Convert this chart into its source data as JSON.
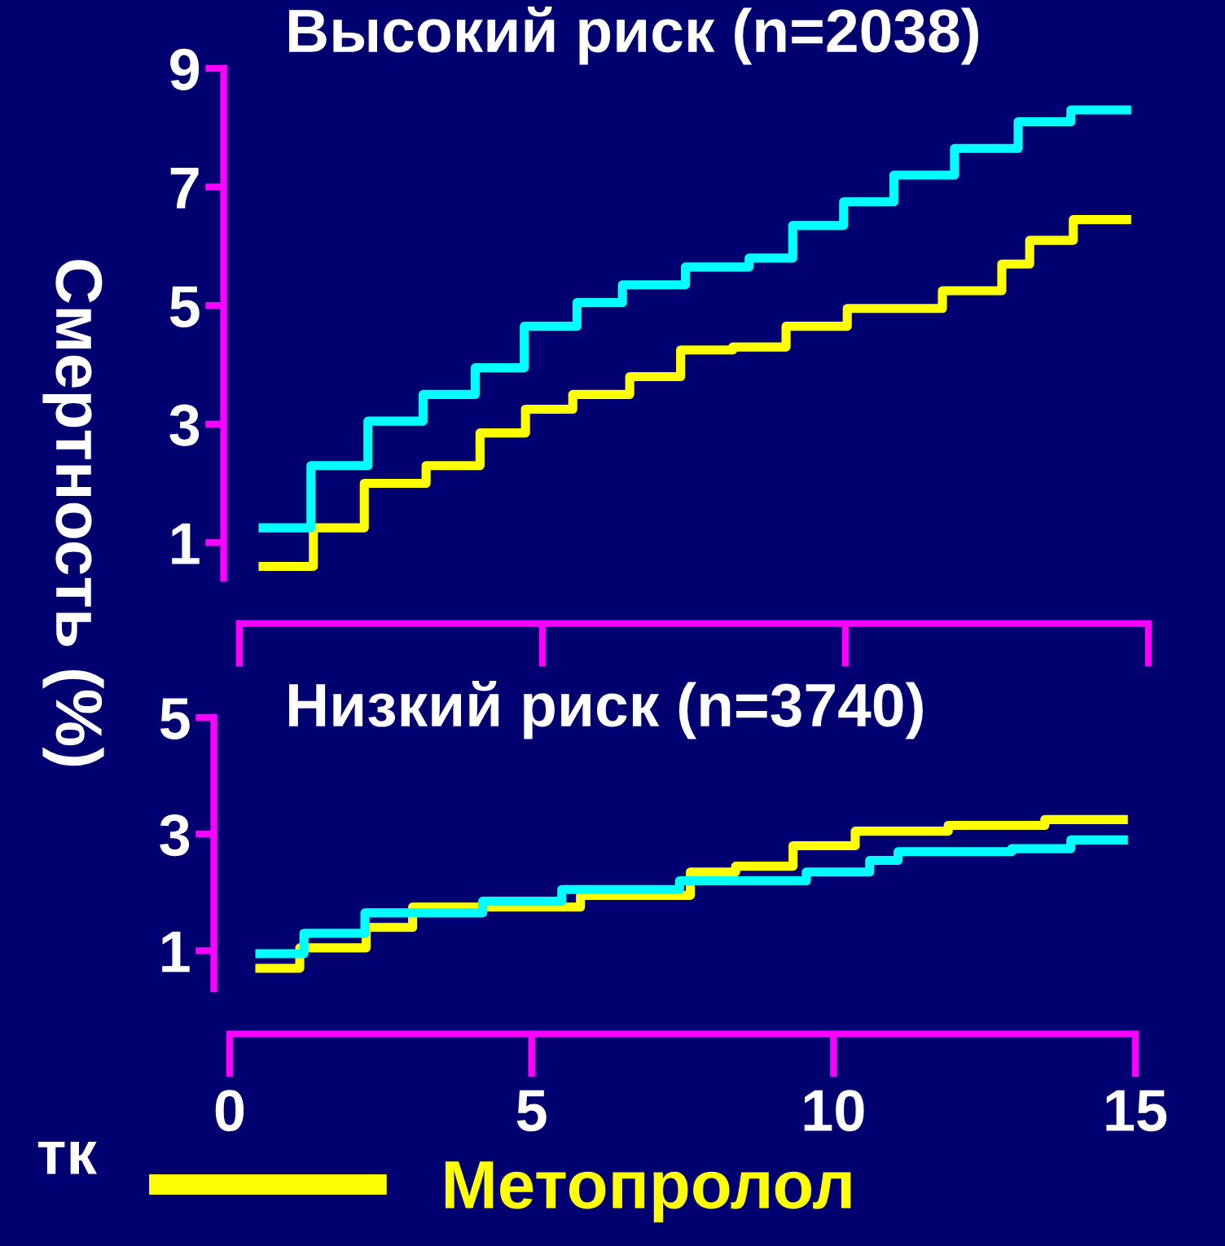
{
  "chart_data": [
    {
      "type": "step",
      "title": "Высокий риск (n=2038)",
      "ylabel": "Смертность (%)",
      "xlim": [
        0,
        15
      ],
      "xticks": [
        {
          "value": 0,
          "label": null
        },
        {
          "value": 5,
          "label": null
        },
        {
          "value": 10,
          "label": null
        },
        {
          "value": 15,
          "label": null
        }
      ],
      "ylim": [
        0.4,
        9
      ],
      "yticks": [
        1,
        3,
        5,
        7,
        9
      ],
      "tick_labels": "y",
      "grid": false,
      "legend": "bottom",
      "series": [
        {
          "name": "Метопролол",
          "color": "#ffff00",
          "x": [
            0.39,
            1.22,
            2.06,
            3.08,
            3.97,
            4.72,
            5.5,
            6.44,
            7.28,
            8.14,
            9.02,
            10.03,
            11.6,
            12.58,
            13.04,
            13.76,
            14.64
          ],
          "values": [
            0.6,
            1.25,
            2.0,
            2.3,
            2.85,
            3.25,
            3.5,
            3.8,
            4.25,
            4.3,
            4.65,
            4.95,
            5.25,
            5.7,
            6.1,
            6.45,
            6.45
          ]
        },
        {
          "color": "#00ffff",
          "x": [
            0.39,
            1.18,
            2.12,
            3.03,
            3.89,
            4.7,
            5.57,
            6.32,
            7.36,
            8.41,
            9.13,
            9.97,
            10.8,
            11.8,
            12.85,
            13.72,
            14.64
          ],
          "values": [
            1.25,
            2.3,
            3.05,
            3.5,
            3.95,
            4.65,
            5.05,
            5.35,
            5.65,
            5.8,
            6.35,
            6.75,
            7.2,
            7.65,
            8.1,
            8.3,
            8.3
          ]
        }
      ]
    },
    {
      "type": "step",
      "title": "Низкий риск (n=3740)",
      "xlabel": "тк",
      "xlim": [
        0,
        15
      ],
      "xticks": [
        0,
        5,
        10,
        15
      ],
      "ylim": [
        0.35,
        5
      ],
      "yticks": [
        1,
        3,
        5
      ],
      "grid": false,
      "series": [
        {
          "color": "#ffff00",
          "x": [
            0.5,
            1.16,
            2.26,
            3.03,
            5.81,
            7.63,
            8.38,
            9.33,
            10.36,
            11.9,
            13.5,
            14.8
          ],
          "values": [
            0.7,
            1.05,
            1.4,
            1.75,
            1.95,
            2.35,
            2.45,
            2.8,
            3.05,
            3.15,
            3.25,
            3.25
          ]
        },
        {
          "color": "#00ffff",
          "x": [
            0.5,
            1.23,
            2.24,
            4.19,
            5.5,
            7.45,
            9.55,
            10.6,
            11.07,
            12.95,
            13.93,
            14.8
          ],
          "values": [
            0.95,
            1.3,
            1.65,
            1.85,
            2.05,
            2.2,
            2.35,
            2.55,
            2.7,
            2.75,
            2.9,
            2.9
          ]
        }
      ]
    }
  ]
}
